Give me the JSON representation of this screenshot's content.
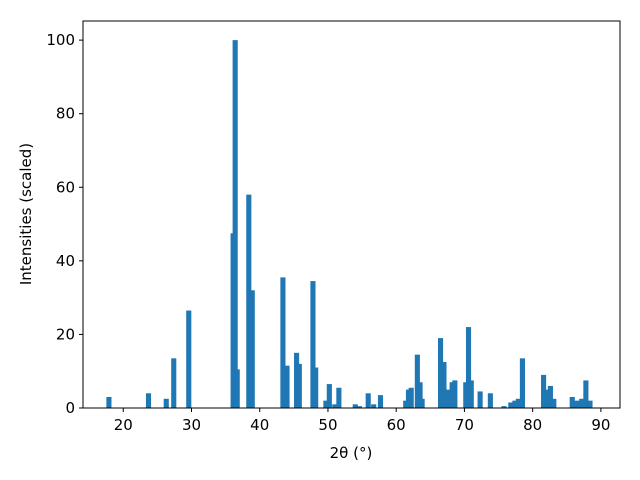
{
  "chart_data": {
    "type": "bar",
    "xlabel": "2θ (°)",
    "ylabel": "Intensities (scaled)",
    "color": "#1f77b4",
    "x": [
      17.9,
      23.7,
      26.3,
      27.4,
      29.6,
      36.1,
      36.4,
      36.7,
      38.4,
      38.9,
      43.4,
      44.0,
      45.4,
      45.8,
      47.8,
      48.2,
      49.7,
      50.2,
      51.0,
      51.6,
      54.0,
      54.6,
      55.9,
      56.7,
      57.7,
      61.4,
      61.8,
      62.2,
      63.1,
      63.5,
      63.8,
      66.5,
      67.0,
      67.6,
      68.2,
      68.6,
      70.2,
      70.6,
      71.0,
      72.3,
      73.8,
      75.8,
      76.8,
      77.4,
      77.9,
      78.5,
      81.6,
      82.1,
      82.6,
      83.1,
      85.8,
      86.5,
      87.2,
      87.8,
      88.4
    ],
    "values": [
      3,
      4,
      2.5,
      13.5,
      26.5,
      47.5,
      100,
      10.5,
      58,
      32,
      35.5,
      11.5,
      15,
      12,
      34.5,
      11,
      2,
      6.5,
      1,
      5.5,
      1,
      0.5,
      4,
      1,
      3.5,
      2,
      5,
      5.5,
      14.5,
      7,
      2.5,
      19,
      12.5,
      5,
      7,
      7.5,
      7,
      22,
      7.5,
      4.5,
      4,
      0.5,
      1.5,
      2,
      2.5,
      13.5,
      9,
      5,
      6,
      2.5,
      3,
      2,
      2.5,
      7.5,
      2
    ],
    "xlim": [
      14.1,
      92.8
    ],
    "ylim": [
      0,
      105.2
    ],
    "xticks": [
      20,
      30,
      40,
      50,
      60,
      70,
      80,
      90
    ],
    "yticks": [
      0,
      20,
      40,
      60,
      80,
      100
    ]
  }
}
